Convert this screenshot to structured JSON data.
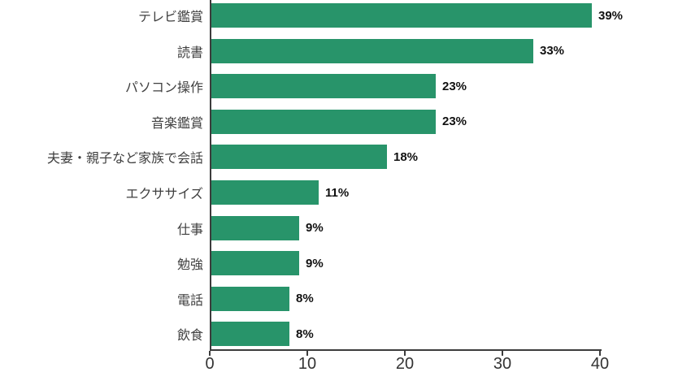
{
  "chart_data": {
    "type": "bar",
    "orientation": "horizontal",
    "title": "",
    "xlabel": "",
    "ylabel": "",
    "categories": [
      "テレビ鑑賞",
      "読書",
      "パソコン操作",
      "音楽鑑賞",
      "夫妻・親子など家族で会話",
      "エクササイズ",
      "仕事",
      "勉強",
      "電話",
      "飲食"
    ],
    "values": [
      39,
      33,
      23,
      23,
      18,
      11,
      9,
      9,
      8,
      8
    ],
    "value_labels": [
      "39%",
      "33%",
      "23%",
      "23%",
      "18%",
      "11%",
      "9%",
      "9%",
      "8%",
      "8%"
    ],
    "xlim": [
      0,
      40
    ],
    "xticks": [
      0,
      10,
      20,
      30,
      40
    ],
    "xtick_labels": [
      "0",
      "10",
      "20",
      "30",
      "40"
    ],
    "grid": false,
    "legend": null,
    "colors": {
      "bar": "#28946A",
      "axis": "#3c3c3c",
      "category_label": "#3f3f3f",
      "value_label": "#111111",
      "tick_label": "#333333",
      "background": "#ffffff"
    }
  }
}
